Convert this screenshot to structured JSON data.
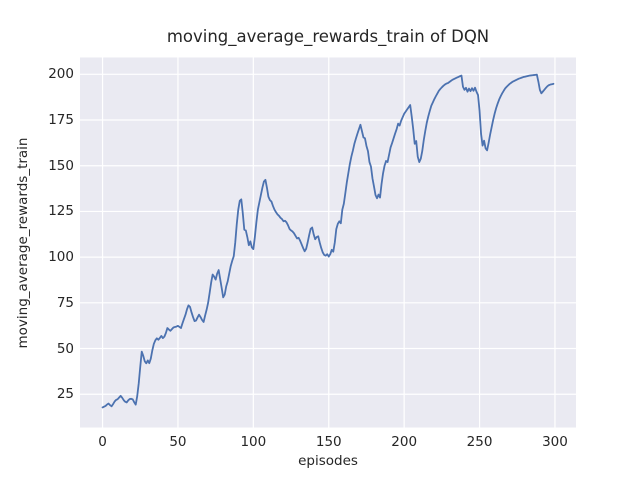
{
  "chart_data": {
    "type": "line",
    "title": "moving_average_rewards_train of DQN",
    "xlabel": "episodes",
    "ylabel": "moving_average_rewards_train",
    "legend": null,
    "grid": true,
    "style": "seaborn-darkgrid",
    "colors": {
      "line": "#4C72B0",
      "plot_background": "#EAEAF2",
      "gridline": "#FFFFFF",
      "figure_background": "#FFFFFF",
      "text": "#262626"
    },
    "xlim": [
      -14.95,
      313.95
    ],
    "ylim": [
      6.8,
      209.2
    ],
    "xticks": [
      0,
      50,
      100,
      150,
      200,
      250,
      300
    ],
    "yticks": [
      25,
      50,
      75,
      100,
      125,
      150,
      175,
      200
    ],
    "x_from": 0,
    "x_step": 1,
    "series": [
      {
        "name": "moving_average_rewards_train",
        "values": [
          17.8,
          18.2,
          18.6,
          19.4,
          19.9,
          19.0,
          18.4,
          19.6,
          21.0,
          21.9,
          22.3,
          23.2,
          24.1,
          23.1,
          21.8,
          20.9,
          20.5,
          21.6,
          22.4,
          22.5,
          22.2,
          20.6,
          19.3,
          24.0,
          31.0,
          40.0,
          48.3,
          46.0,
          43.0,
          41.9,
          43.5,
          42.0,
          44.5,
          49.0,
          52.5,
          54.5,
          55.6,
          54.8,
          55.8,
          56.9,
          55.7,
          56.5,
          58.5,
          61.2,
          60.4,
          59.7,
          60.6,
          61.5,
          61.8,
          62.0,
          62.4,
          61.8,
          61.2,
          63.8,
          66.2,
          68.5,
          71.5,
          73.6,
          72.8,
          69.8,
          67.2,
          65.0,
          65.3,
          67.0,
          68.5,
          67.2,
          65.6,
          64.5,
          68.0,
          71.2,
          75.0,
          80.4,
          86.0,
          90.5,
          89.3,
          87.7,
          91.0,
          92.9,
          88.0,
          83.1,
          78.0,
          79.5,
          84.0,
          86.8,
          91.0,
          95.1,
          98.0,
          100.5,
          108.0,
          118.0,
          126.0,
          130.8,
          131.6,
          124.0,
          115.0,
          114.6,
          111.0,
          106.5,
          108.6,
          105.3,
          104.4,
          111.0,
          119.0,
          126.0,
          130.0,
          134.0,
          138.0,
          141.3,
          142.3,
          138.0,
          133.0,
          131.2,
          130.4,
          128.0,
          126.0,
          124.6,
          123.4,
          122.6,
          121.5,
          120.8,
          119.6,
          119.9,
          119.0,
          117.4,
          115.4,
          114.6,
          114.0,
          113.0,
          111.6,
          110.2,
          110.6,
          109.0,
          107.0,
          105.0,
          103.2,
          104.5,
          108.0,
          112.0,
          115.5,
          116.2,
          112.5,
          109.8,
          111.0,
          111.4,
          108.0,
          105.0,
          102.6,
          101.2,
          100.8,
          101.6,
          100.3,
          101.6,
          104.0,
          103.0,
          108.0,
          115.3,
          118.2,
          119.6,
          118.5,
          126.0,
          129.2,
          135.0,
          141.0,
          146.0,
          151.0,
          155.0,
          158.3,
          162.0,
          164.8,
          167.5,
          170.0,
          172.4,
          169.0,
          165.5,
          165.0,
          160.8,
          158.0,
          152.0,
          149.5,
          143.0,
          138.6,
          134.0,
          132.2,
          134.2,
          132.6,
          140.0,
          145.8,
          150.0,
          152.6,
          152.0,
          156.0,
          160.0,
          162.4,
          165.0,
          167.6,
          170.0,
          173.0,
          172.0,
          174.6,
          176.5,
          178.4,
          179.6,
          180.8,
          182.0,
          183.2,
          177.0,
          170.0,
          162.0,
          163.5,
          155.0,
          152.0,
          153.8,
          158.0,
          164.0,
          169.0,
          173.5,
          177.0,
          180.0,
          182.8,
          184.6,
          186.4,
          188.0,
          189.5,
          191.0,
          192.0,
          192.9,
          193.7,
          194.4,
          194.9,
          195.2,
          195.8,
          196.4,
          197.0,
          197.4,
          197.8,
          198.2,
          198.6,
          199.0,
          199.3,
          193.2,
          191.5,
          192.6,
          190.5,
          192.2,
          190.8,
          192.4,
          191.0,
          192.7,
          190.4,
          188.6,
          180.0,
          167.4,
          161.0,
          163.7,
          159.5,
          158.4,
          162.5,
          167.0,
          171.0,
          175.0,
          178.5,
          181.5,
          184.0,
          186.2,
          188.0,
          189.6,
          191.0,
          192.3,
          193.2,
          194.0,
          194.8,
          195.4,
          196.0,
          196.4,
          196.8,
          197.2,
          197.6,
          197.9,
          198.2,
          198.5,
          198.7,
          198.9,
          199.1,
          199.3,
          199.4,
          199.5,
          199.6,
          199.7,
          199.8,
          196.0,
          191.5,
          189.6,
          190.6,
          191.6,
          192.6,
          193.5,
          194.1,
          194.4,
          194.6,
          194.8
        ]
      }
    ]
  }
}
